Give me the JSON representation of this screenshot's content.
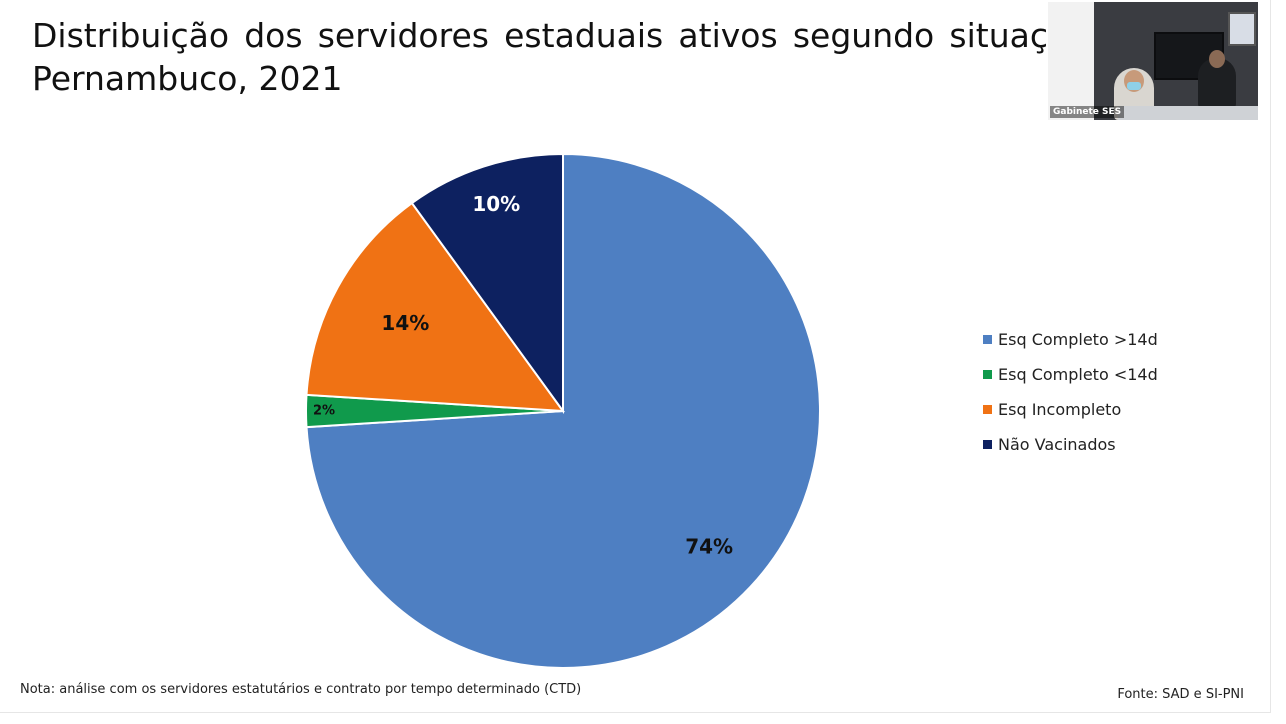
{
  "title": {
    "line1": "Distribuição dos servidores estaduais ativos segundo situaç",
    "line2": "Pernambuco, 2021"
  },
  "chart_data": {
    "type": "pie",
    "categories": [
      "Esq Completo >14d",
      "Esq Completo <14d",
      "Esq Incompleto",
      "Não Vacinados"
    ],
    "values": [
      74,
      2,
      14,
      10
    ],
    "labels": [
      "74%",
      "2%",
      "14%",
      "10%"
    ],
    "colors": [
      "#4e7fc2",
      "#109a4c",
      "#f07214",
      "#0d2160"
    ],
    "label_colors": [
      "#111111",
      "#111111",
      "#111111",
      "#ffffff"
    ],
    "legend_position": "right"
  },
  "note": "Nota: análise com os servidores estatutários e contrato por tempo determinado (CTD)",
  "source": "Fonte: SAD e  SI-PNI",
  "video": {
    "participant_label": "Gabinete SES"
  }
}
